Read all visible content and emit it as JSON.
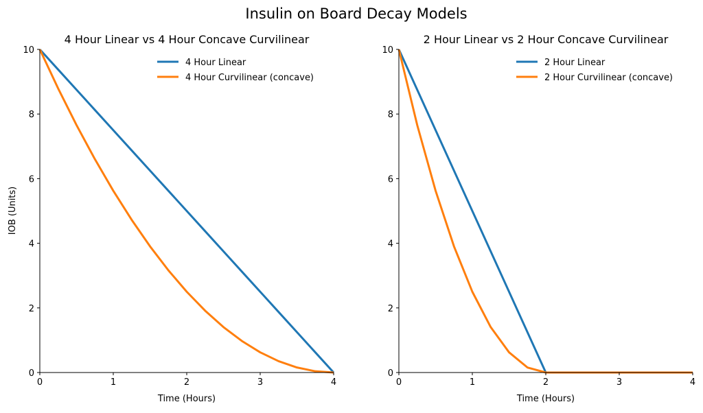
{
  "suptitle": "Insulin on Board Decay Models",
  "colors": {
    "linear": "#1f77b4",
    "curvilinear": "#ff7f0e"
  },
  "chart_data": [
    {
      "type": "line",
      "title": "4 Hour Linear vs 4 Hour Concave Curvilinear",
      "xlabel": "Time (Hours)",
      "ylabel": "IOB (Units)",
      "xlim": [
        0,
        4
      ],
      "ylim": [
        0,
        10
      ],
      "xticks": [
        "0",
        "1",
        "2",
        "3",
        "4"
      ],
      "yticks": [
        "0",
        "2",
        "4",
        "6",
        "8",
        "10"
      ],
      "grid": false,
      "legend": "top-right",
      "x": [
        0,
        0.25,
        0.5,
        0.75,
        1,
        1.25,
        1.5,
        1.75,
        2,
        2.25,
        2.5,
        2.75,
        3,
        3.25,
        3.5,
        3.75,
        4
      ],
      "series": [
        {
          "name": "4 Hour Linear",
          "values": [
            10,
            9.375,
            8.75,
            8.125,
            7.5,
            6.875,
            6.25,
            5.625,
            5,
            4.375,
            3.75,
            3.125,
            2.5,
            1.875,
            1.25,
            0.625,
            0
          ]
        },
        {
          "name": "4 Hour Curvilinear (concave)",
          "values": [
            10,
            8.789,
            7.656,
            6.602,
            5.625,
            4.727,
            3.906,
            3.164,
            2.5,
            1.914,
            1.406,
            0.977,
            0.625,
            0.352,
            0.156,
            0.039,
            0
          ]
        }
      ]
    },
    {
      "type": "line",
      "title": "2 Hour Linear vs 2 Hour Concave Curvilinear",
      "xlabel": "Time (Hours)",
      "ylabel": "",
      "xlim": [
        0,
        4
      ],
      "ylim": [
        0,
        10
      ],
      "xticks": [
        "0",
        "1",
        "2",
        "3",
        "4"
      ],
      "yticks": [
        "0",
        "2",
        "4",
        "6",
        "8",
        "10"
      ],
      "grid": false,
      "legend": "top-right",
      "x": [
        0,
        0.25,
        0.5,
        0.75,
        1,
        1.25,
        1.5,
        1.75,
        2,
        2.25,
        2.5,
        2.75,
        3,
        3.25,
        3.5,
        3.75,
        4
      ],
      "series": [
        {
          "name": "2 Hour Linear",
          "values": [
            10,
            8.75,
            7.5,
            6.25,
            5,
            3.75,
            2.5,
            1.25,
            0,
            0,
            0,
            0,
            0,
            0,
            0,
            0,
            0
          ]
        },
        {
          "name": "2 Hour Curvilinear (concave)",
          "values": [
            10,
            7.656,
            5.625,
            3.906,
            2.5,
            1.406,
            0.625,
            0.156,
            0,
            0,
            0,
            0,
            0,
            0,
            0,
            0,
            0
          ]
        }
      ]
    }
  ]
}
